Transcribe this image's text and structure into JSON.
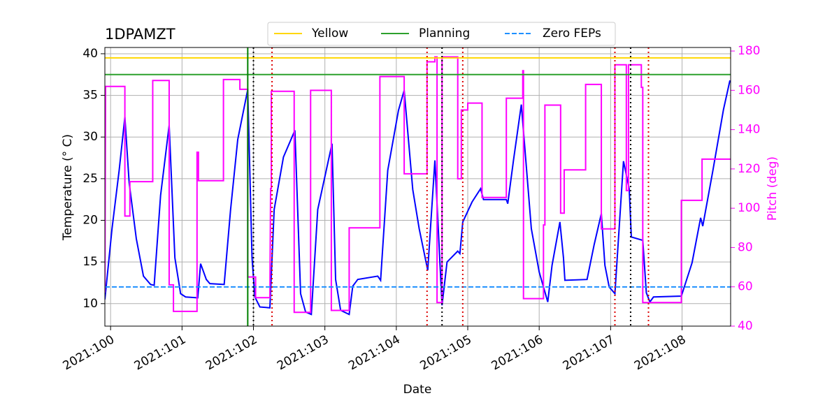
{
  "chart_data": {
    "type": "line",
    "title": "1DPAMZT",
    "xlabel": "Date",
    "ylabel": "Temperature (° C)",
    "y2label": "Pitch (deg)",
    "xlim": [
      99.92,
      108.68
    ],
    "xticks": [
      {
        "value": 100,
        "label": "2021:100"
      },
      {
        "value": 101,
        "label": "2021:101"
      },
      {
        "value": 102,
        "label": "2021:102"
      },
      {
        "value": 103,
        "label": "2021:103"
      },
      {
        "value": 104,
        "label": "2021:104"
      },
      {
        "value": 105,
        "label": "2021:105"
      },
      {
        "value": 106,
        "label": "2021:106"
      },
      {
        "value": 107,
        "label": "2021:107"
      },
      {
        "value": 108,
        "label": "2021:108"
      }
    ],
    "ylim": [
      7.3,
      40.75
    ],
    "yticks": [
      10,
      15,
      20,
      25,
      30,
      35,
      40
    ],
    "y2lim": [
      40,
      181.8
    ],
    "y2ticks": [
      40,
      60,
      80,
      100,
      120,
      140,
      160,
      180
    ],
    "y2color": "#ff00ff",
    "grid": true,
    "legend": "top",
    "series": [
      {
        "color": "#0000ff",
        "x": [
          99.92,
          100.02,
          100.12,
          100.2,
          100.26,
          100.36,
          100.46,
          100.56,
          100.61,
          100.7,
          100.82,
          100.9,
          100.98,
          101.05,
          101.22,
          101.26,
          101.34,
          101.39,
          101.59,
          101.68,
          101.78,
          101.92,
          101.98,
          102.02,
          102.09,
          102.23,
          102.29,
          102.42,
          102.58,
          102.66,
          102.73,
          102.81,
          102.9,
          103.1,
          103.15,
          103.22,
          103.34,
          103.39,
          103.46,
          103.74,
          103.78,
          103.88,
          104.03,
          104.11,
          104.23,
          104.32,
          104.44,
          104.54,
          104.64,
          104.71,
          104.86,
          104.89,
          104.93,
          105.06,
          105.18,
          105.22,
          105.54,
          105.56,
          105.64,
          105.75,
          105.89,
          106.0,
          106.12,
          106.18,
          106.29,
          106.34,
          106.36,
          106.67,
          106.77,
          106.87,
          106.92,
          106.98,
          107.06,
          107.18,
          107.26,
          107.29,
          107.45,
          107.5,
          107.55,
          107.6,
          107.99,
          108.14,
          108.26,
          108.29,
          108.43,
          108.58,
          108.67
        ],
        "values": [
          10.5,
          19,
          26,
          32.4,
          24.5,
          17.8,
          13.3,
          12.3,
          12.2,
          23,
          31.4,
          15.5,
          11.2,
          10.8,
          10.7,
          14.8,
          12.9,
          12.4,
          12.3,
          21.3,
          29.7,
          35.7,
          15.5,
          10.8,
          9.6,
          9.5,
          21.3,
          27.6,
          30.8,
          11.2,
          9,
          8.7,
          21.3,
          29.2,
          12.9,
          9.2,
          8.7,
          12.1,
          12.9,
          13.3,
          12.8,
          26,
          33.2,
          35.6,
          23.7,
          19,
          14,
          27.2,
          9.8,
          15,
          16.3,
          16,
          19.8,
          22.2,
          23.8,
          22.5,
          22.5,
          22,
          27.2,
          33.9,
          19,
          13.8,
          10.2,
          14.6,
          19.8,
          15.5,
          12.8,
          12.9,
          17.1,
          20.8,
          14.6,
          12,
          11.2,
          27.1,
          23.8,
          18,
          17.6,
          11.3,
          10.2,
          10.8,
          10.9,
          14.9,
          20.3,
          19.3,
          25.9,
          33.3,
          36.8
        ]
      },
      {
        "color": "#ff00ff",
        "axis": "y2",
        "x": [
          99.92,
          99.93,
          100.2,
          100.2,
          100.27,
          100.27,
          100.59,
          100.59,
          100.82,
          100.82,
          100.88,
          100.88,
          101.21,
          101.21,
          101.23,
          101.23,
          101.58,
          101.58,
          101.81,
          101.81,
          101.92,
          101.92,
          102.03,
          102.03,
          102.23,
          102.24,
          102.25,
          102.25,
          102.57,
          102.57,
          102.8,
          102.8,
          103.09,
          103.09,
          103.34,
          103.34,
          103.77,
          103.77,
          104.11,
          104.11,
          104.43,
          104.43,
          104.54,
          104.54,
          104.57,
          104.57,
          104.64,
          104.64,
          104.86,
          104.86,
          104.91,
          104.91,
          105.0,
          105.0,
          105.2,
          105.2,
          105.54,
          105.54,
          105.77,
          105.77,
          105.78,
          105.78,
          106.06,
          106.06,
          106.08,
          106.08,
          106.3,
          106.3,
          106.35,
          106.35,
          106.65,
          106.65,
          106.87,
          106.87,
          107.06,
          107.06,
          107.22,
          107.22,
          107.25,
          107.25,
          107.43,
          107.43,
          107.45,
          107.45,
          107.99,
          107.99,
          108.28,
          108.28,
          108.68
        ],
        "values": [
          57,
          162,
          162,
          96,
          96,
          113.5,
          113.5,
          165,
          165,
          61,
          61,
          47.5,
          47.5,
          128.5,
          128.5,
          114,
          114,
          165.5,
          165.5,
          160.5,
          160.5,
          65,
          65,
          54.5,
          54.5,
          110,
          110,
          159.5,
          159.5,
          47,
          47,
          160,
          160,
          48,
          48,
          90,
          90,
          167,
          167,
          117.5,
          117.5,
          174.5,
          174.5,
          177,
          177,
          52,
          52,
          177,
          177,
          115,
          115,
          150,
          150,
          153.5,
          153.5,
          105.5,
          105.5,
          156,
          156,
          170,
          170,
          54,
          54,
          91.5,
          91.5,
          152.5,
          152.5,
          97.5,
          97.5,
          119.5,
          119.5,
          163,
          163,
          89.5,
          89.5,
          173,
          173,
          109,
          109,
          173,
          173,
          161.5,
          161.5,
          52,
          52,
          104,
          104,
          125,
          125
        ]
      }
    ],
    "hlines": [
      {
        "name": "Yellow",
        "value": 39.5,
        "color": "#ffd700",
        "style": "solid"
      },
      {
        "name": "Planning",
        "value": 37.5,
        "color": "#2ca02c",
        "style": "solid"
      },
      {
        "name": "Zero FEPs",
        "value": 12.0,
        "color": "#1e90ff",
        "style": "dashed"
      }
    ],
    "vlines": [
      {
        "x": 101.92,
        "color": "#008000",
        "style": "solid"
      },
      {
        "x": 102.0,
        "color": "#000000",
        "style": "dotted"
      },
      {
        "x": 104.64,
        "color": "#000000",
        "style": "dotted"
      },
      {
        "x": 107.28,
        "color": "#000000",
        "style": "dotted"
      },
      {
        "x": 102.26,
        "color": "#dd0000",
        "style": "dotted"
      },
      {
        "x": 104.43,
        "color": "#dd0000",
        "style": "dotted"
      },
      {
        "x": 104.93,
        "color": "#dd0000",
        "style": "dotted"
      },
      {
        "x": 107.06,
        "color": "#dd0000",
        "style": "dotted"
      },
      {
        "x": 107.53,
        "color": "#dd0000",
        "style": "dotted"
      }
    ]
  }
}
